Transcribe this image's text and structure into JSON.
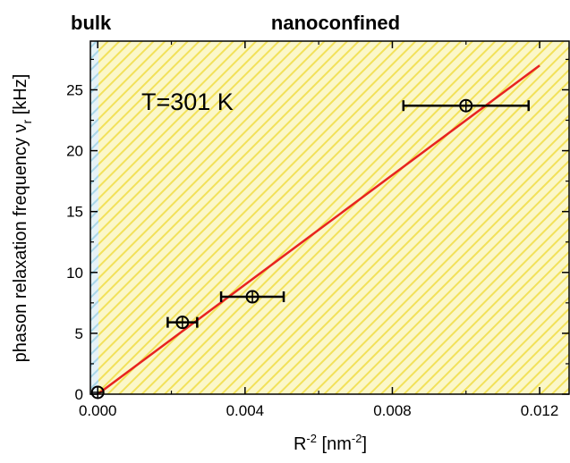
{
  "chart_data": {
    "type": "scatter",
    "region_labels": {
      "bulk": "bulk",
      "nanoconfined": "nanoconfined"
    },
    "annotation": "T=301 K",
    "xlabel": {
      "base": "R",
      "sup": "-2",
      "unit_open": " [nm",
      "unit_sup": "-2",
      "unit_close": "]"
    },
    "ylabel": {
      "text": "phason relaxation frequency ν",
      "sub": "r",
      "unit": " [kHz]"
    },
    "xlim": [
      -0.0002,
      0.0128
    ],
    "ylim": [
      0,
      29
    ],
    "xticks": [
      0.0,
      0.004,
      0.008,
      0.012
    ],
    "xtick_labels": [
      "0.000",
      "0.004",
      "0.008",
      "0.012"
    ],
    "yticks": [
      0,
      5,
      10,
      15,
      20,
      25
    ],
    "ytick_labels": [
      "0",
      "5",
      "10",
      "15",
      "20",
      "25"
    ],
    "bulk_region": [
      -0.0002,
      2e-05
    ],
    "points": [
      {
        "x": 0.0,
        "y": 0.15,
        "xerr": 0.0
      },
      {
        "x": 0.0023,
        "y": 5.9,
        "xerr": 0.0004
      },
      {
        "x": 0.0042,
        "y": 8.0,
        "xerr": 0.00085
      },
      {
        "x": 0.01,
        "y": 23.7,
        "xerr": 0.0017
      }
    ],
    "fit_line": {
      "x": [
        0.0,
        0.012
      ],
      "y": [
        0.0,
        27.0
      ]
    },
    "colors": {
      "fit_line": "#e8231f",
      "bulk_bg": "#e6f2f7",
      "bulk_hatch": "#a9d6e8",
      "nano_bg": "#fbf7c9",
      "nano_hatch": "#f2e15a",
      "points": "#000000"
    }
  }
}
